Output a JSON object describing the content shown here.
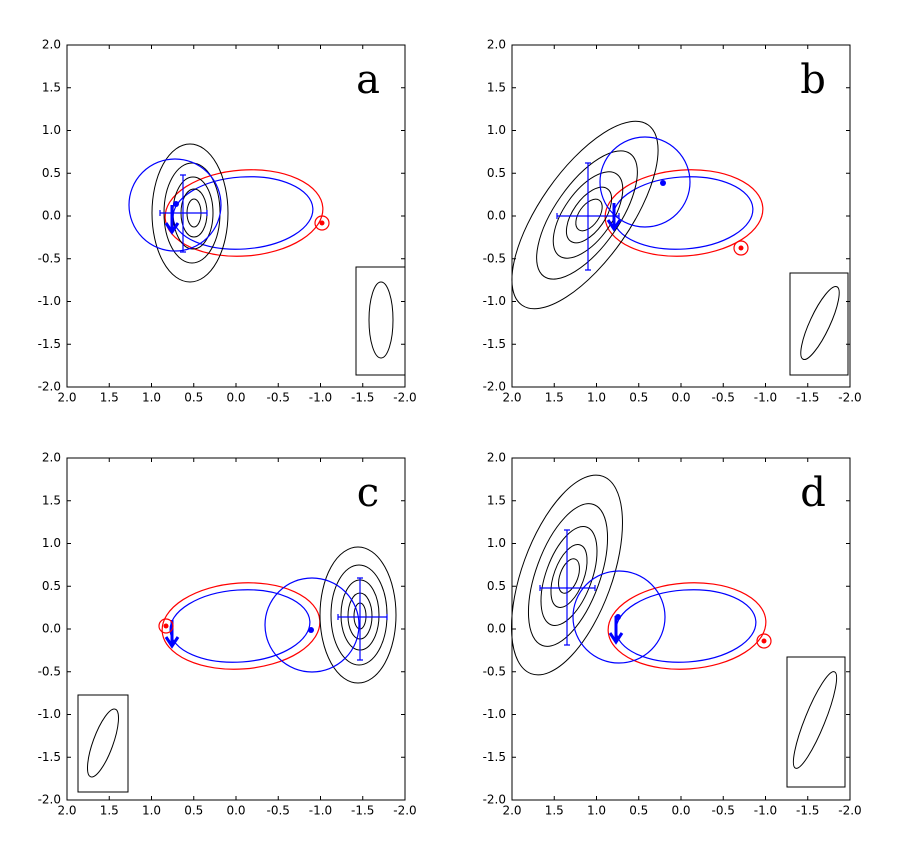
{
  "chart_data": [
    {
      "type": "scatter",
      "label": "a",
      "xlim": [
        2,
        -2
      ],
      "ylim": [
        -2,
        2
      ],
      "xticks": [
        {
          "value": 2,
          "label": "2.0"
        },
        {
          "value": 1.5,
          "label": "1.5"
        },
        {
          "value": 1,
          "label": "1.0"
        },
        {
          "value": 0.5,
          "label": "0.5"
        },
        {
          "value": 0,
          "label": "0.0"
        },
        {
          "value": -0.5,
          "label": "-0.5"
        },
        {
          "value": -1,
          "label": "-1.0"
        },
        {
          "value": -1.5,
          "label": "-1.5"
        },
        {
          "value": -2,
          "label": "-2.0"
        }
      ],
      "yticks": [
        {
          "value": -2,
          "label": "-2.0"
        },
        {
          "value": -1.5,
          "label": "-1.5"
        },
        {
          "value": -1,
          "label": "-1.0"
        },
        {
          "value": -0.5,
          "label": "-0.5"
        },
        {
          "value": 0,
          "label": "0.0"
        },
        {
          "value": 0.5,
          "label": "0.5"
        },
        {
          "value": 1,
          "label": "1.0"
        },
        {
          "value": 1.5,
          "label": "1.5"
        },
        {
          "value": 2,
          "label": "2.0"
        }
      ]
    },
    {
      "type": "scatter",
      "label": "b",
      "xlim": [
        2,
        -2
      ],
      "ylim": [
        -2,
        2
      ],
      "xticks": [
        {
          "value": 2,
          "label": "2.0"
        },
        {
          "value": 1.5,
          "label": "1.5"
        },
        {
          "value": 1,
          "label": "1.0"
        },
        {
          "value": 0.5,
          "label": "0.5"
        },
        {
          "value": 0,
          "label": "0.0"
        },
        {
          "value": -0.5,
          "label": "-0.5"
        },
        {
          "value": -1,
          "label": "-1.0"
        },
        {
          "value": -1.5,
          "label": "-1.5"
        },
        {
          "value": -2,
          "label": "-2.0"
        }
      ],
      "yticks": [
        {
          "value": -2,
          "label": "-2.0"
        },
        {
          "value": -1.5,
          "label": "-1.5"
        },
        {
          "value": -1,
          "label": "-1.0"
        },
        {
          "value": -0.5,
          "label": "-0.5"
        },
        {
          "value": 0,
          "label": "0.0"
        },
        {
          "value": 0.5,
          "label": "0.5"
        },
        {
          "value": 1,
          "label": "1.0"
        },
        {
          "value": 1.5,
          "label": "1.5"
        },
        {
          "value": 2,
          "label": "2.0"
        }
      ]
    },
    {
      "type": "scatter",
      "label": "c",
      "xlim": [
        2,
        -2
      ],
      "ylim": [
        -2,
        2
      ],
      "xticks": [
        {
          "value": 2,
          "label": "2.0"
        },
        {
          "value": 1.5,
          "label": "1.5"
        },
        {
          "value": 1,
          "label": "1.0"
        },
        {
          "value": 0.5,
          "label": "0.5"
        },
        {
          "value": 0,
          "label": "0.0"
        },
        {
          "value": -0.5,
          "label": "-0.5"
        },
        {
          "value": -1,
          "label": "-1.0"
        },
        {
          "value": -1.5,
          "label": "-1.5"
        },
        {
          "value": -2,
          "label": "-2.0"
        }
      ],
      "yticks": [
        {
          "value": -2,
          "label": "-2.0"
        },
        {
          "value": -1.5,
          "label": "-1.5"
        },
        {
          "value": -1,
          "label": "-1.0"
        },
        {
          "value": -0.5,
          "label": "-0.5"
        },
        {
          "value": 0,
          "label": "0.0"
        },
        {
          "value": 0.5,
          "label": "0.5"
        },
        {
          "value": 1,
          "label": "1.0"
        },
        {
          "value": 1.5,
          "label": "1.5"
        },
        {
          "value": 2,
          "label": "2.0"
        }
      ]
    },
    {
      "type": "scatter",
      "label": "d",
      "xlim": [
        2,
        -2
      ],
      "ylim": [
        -2,
        2
      ],
      "xticks": [
        {
          "value": 2,
          "label": "2.0"
        },
        {
          "value": 1.5,
          "label": "1.5"
        },
        {
          "value": 1,
          "label": "1.0"
        },
        {
          "value": 0.5,
          "label": "0.5"
        },
        {
          "value": 0,
          "label": "0.0"
        },
        {
          "value": -0.5,
          "label": "-0.5"
        },
        {
          "value": -1,
          "label": "-1.0"
        },
        {
          "value": -1.5,
          "label": "-1.5"
        },
        {
          "value": -2,
          "label": "-2.0"
        }
      ],
      "yticks": [
        {
          "value": -2,
          "label": "-2.0"
        },
        {
          "value": -1.5,
          "label": "-1.5"
        },
        {
          "value": -1,
          "label": "-1.0"
        },
        {
          "value": -0.5,
          "label": "-0.5"
        },
        {
          "value": 0,
          "label": "0.0"
        },
        {
          "value": 0.5,
          "label": "0.5"
        },
        {
          "value": 1,
          "label": "1.0"
        },
        {
          "value": 1.5,
          "label": "1.5"
        },
        {
          "value": 2,
          "label": "2.0"
        }
      ]
    }
  ]
}
